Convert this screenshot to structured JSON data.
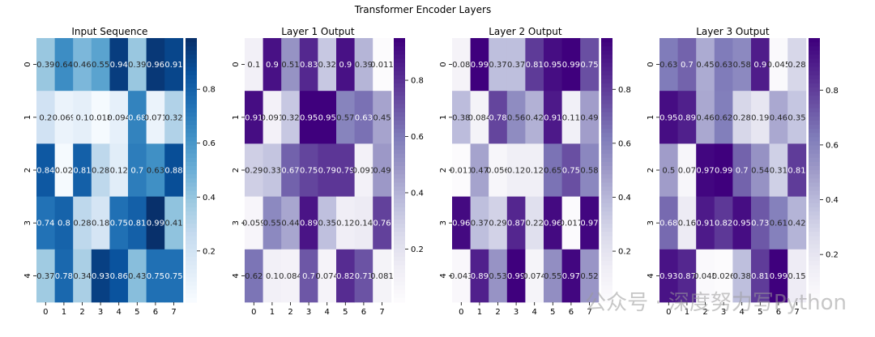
{
  "suptitle": "Transformer Encoder Layers",
  "watermark": "公众号 · 深度努力写Python",
  "colormaps": {
    "Blues": [
      "#f7fbff",
      "#deebf7",
      "#c6dbef",
      "#9ecae1",
      "#6baed6",
      "#4292c6",
      "#2171b5",
      "#08519c",
      "#08306b"
    ],
    "Purples": [
      "#fcfbfd",
      "#efedf5",
      "#dadaeb",
      "#bcbddc",
      "#9e9ac8",
      "#807dba",
      "#6a51a3",
      "#54278f",
      "#3f007d"
    ]
  },
  "chart_data": [
    {
      "type": "heatmap",
      "title": "Input Sequence",
      "cmap": "Blues",
      "xticks": [
        "0",
        "1",
        "2",
        "3",
        "4",
        "5",
        "6",
        "7"
      ],
      "yticks": [
        "0",
        "1",
        "2",
        "3",
        "4"
      ],
      "vmin": 0.01,
      "vmax": 0.99,
      "colorbar_ticks": [
        "0.2",
        "0.4",
        "0.6",
        "0.8"
      ],
      "values": [
        [
          0.39,
          0.64,
          0.46,
          0.55,
          0.94,
          0.39,
          0.96,
          0.91
        ],
        [
          0.2,
          0.069,
          0.1,
          0.018,
          0.094,
          0.68,
          0.071,
          0.32
        ],
        [
          0.84,
          0.02,
          0.81,
          0.28,
          0.12,
          0.7,
          0.63,
          0.88
        ],
        [
          0.74,
          0.8,
          0.28,
          0.18,
          0.75,
          0.81,
          0.99,
          0.41
        ],
        [
          0.37,
          0.78,
          0.34,
          0.93,
          0.86,
          0.43,
          0.75,
          0.75
        ]
      ],
      "labels": [
        [
          "0.39",
          "0.64",
          "0.46",
          "0.55",
          "0.94",
          "0.39",
          "0.96",
          "0.91"
        ],
        [
          "0.2",
          "0.069",
          "0.1",
          "0.018",
          "0.094",
          "0.68",
          "0.071",
          "0.32"
        ],
        [
          "0.84",
          "0.02",
          "0.81",
          "0.28",
          "0.12",
          "0.7",
          "0.63",
          "0.88"
        ],
        [
          "0.74",
          "0.8",
          "0.28",
          "0.18",
          "0.75",
          "0.81",
          "0.99",
          "0.41"
        ],
        [
          "0.37",
          "0.78",
          "0.34",
          "0.93",
          "0.86",
          "0.43",
          "0.75",
          "0.75"
        ]
      ]
    },
    {
      "type": "heatmap",
      "title": "Layer 1 Output",
      "cmap": "Purples",
      "xticks": [
        "0",
        "1",
        "2",
        "3",
        "4",
        "5",
        "6",
        "7"
      ],
      "yticks": [
        "0",
        "1",
        "2",
        "3",
        "4"
      ],
      "vmin": 0.011,
      "vmax": 0.95,
      "colorbar_ticks": [
        "0.2",
        "0.4",
        "0.6",
        "0.8"
      ],
      "values": [
        [
          0.1,
          0.9,
          0.51,
          0.83,
          0.32,
          0.9,
          0.39,
          0.011
        ],
        [
          0.91,
          0.091,
          0.32,
          0.95,
          0.95,
          0.57,
          0.63,
          0.45
        ],
        [
          0.29,
          0.33,
          0.67,
          0.75,
          0.79,
          0.79,
          0.091,
          0.49
        ],
        [
          0.059,
          0.55,
          0.44,
          0.89,
          0.35,
          0.12,
          0.14,
          0.76
        ],
        [
          0.62,
          0.1,
          0.084,
          0.7,
          0.074,
          0.82,
          0.71,
          0.081
        ]
      ],
      "labels": [
        [
          "0.1",
          "0.9",
          "0.51",
          "0.83",
          "0.32",
          "0.9",
          "0.39",
          "0.011"
        ],
        [
          "0.91",
          "0.091",
          "0.32",
          "0.95",
          "0.95",
          "0.57",
          "0.63",
          "0.45"
        ],
        [
          "0.29",
          "0.33",
          "0.67",
          "0.75",
          "0.79",
          "0.79",
          "0.091",
          "0.49"
        ],
        [
          "0.059",
          "0.55",
          "0.44",
          "0.89",
          "0.35",
          "0.12",
          "0.14",
          "0.76"
        ],
        [
          "0.62",
          "0.1",
          "0.084",
          "0.7",
          "0.074",
          "0.82",
          "0.71",
          "0.081"
        ]
      ]
    },
    {
      "type": "heatmap",
      "title": "Layer 2 Output",
      "cmap": "Purples",
      "xticks": [
        "0",
        "1",
        "2",
        "3",
        "4",
        "5",
        "6",
        "7"
      ],
      "yticks": [
        "0",
        "1",
        "2",
        "3",
        "4"
      ],
      "vmin": 0.011,
      "vmax": 0.99,
      "colorbar_ticks": [
        "0.2",
        "0.4",
        "0.6",
        "0.8"
      ],
      "values": [
        [
          0.08,
          0.99,
          0.37,
          0.37,
          0.81,
          0.95,
          0.99,
          0.75
        ],
        [
          0.38,
          0.084,
          0.78,
          0.56,
          0.42,
          0.91,
          0.11,
          0.49
        ],
        [
          0.011,
          0.47,
          0.056,
          0.12,
          0.12,
          0.65,
          0.75,
          0.58
        ],
        [
          0.96,
          0.37,
          0.29,
          0.87,
          0.22,
          0.96,
          0.017,
          0.97
        ],
        [
          0.043,
          0.89,
          0.53,
          0.99,
          0.074,
          0.55,
          0.97,
          0.52
        ]
      ],
      "labels": [
        [
          "0.08",
          "0.99",
          "0.37",
          "0.37",
          "0.81",
          "0.95",
          "0.99",
          "0.75"
        ],
        [
          "0.38",
          "0.084",
          "0.78",
          "0.56",
          "0.42",
          "0.91",
          "0.11",
          "0.49"
        ],
        [
          "0.011",
          "0.47",
          "0.056",
          "0.12",
          "0.12",
          "0.65",
          "0.75",
          "0.58"
        ],
        [
          "0.96",
          "0.37",
          "0.29",
          "0.87",
          "0.22",
          "0.96",
          "0.017",
          "0.97"
        ],
        [
          "0.043",
          "0.89",
          "0.53",
          "0.99",
          "0.074",
          "0.55",
          "0.97",
          "0.52"
        ]
      ]
    },
    {
      "type": "heatmap",
      "title": "Layer 3 Output",
      "cmap": "Purples",
      "xticks": [
        "0",
        "1",
        "2",
        "3",
        "4",
        "5",
        "6",
        "7"
      ],
      "yticks": [
        "0",
        "1",
        "2",
        "3",
        "4"
      ],
      "vmin": 0.026,
      "vmax": 0.99,
      "colorbar_ticks": [
        "0.2",
        "0.4",
        "0.6",
        "0.8"
      ],
      "values": [
        [
          0.63,
          0.7,
          0.45,
          0.63,
          0.58,
          0.9,
          0.045,
          0.28
        ],
        [
          0.95,
          0.89,
          0.46,
          0.62,
          0.28,
          0.19,
          0.46,
          0.35
        ],
        [
          0.5,
          0.07,
          0.97,
          0.99,
          0.7,
          0.54,
          0.31,
          0.81
        ],
        [
          0.68,
          0.16,
          0.91,
          0.82,
          0.95,
          0.73,
          0.61,
          0.42
        ],
        [
          0.93,
          0.87,
          0.045,
          0.026,
          0.38,
          0.81,
          0.99,
          0.15
        ]
      ],
      "labels": [
        [
          "0.63",
          "0.7",
          "0.45",
          "0.63",
          "0.58",
          "0.9",
          "0.045",
          "0.28"
        ],
        [
          "0.95",
          "0.89",
          "0.46",
          "0.62",
          "0.28",
          "0.19",
          "0.46",
          "0.35"
        ],
        [
          "0.5",
          "0.07",
          "0.97",
          "0.99",
          "0.7",
          "0.54",
          "0.31",
          "0.81"
        ],
        [
          "0.68",
          "0.16",
          "0.91",
          "0.82",
          "0.95",
          "0.73",
          "0.61",
          "0.42"
        ],
        [
          "0.93",
          "0.87",
          "0.045",
          "0.026",
          "0.38",
          "0.81",
          "0.99",
          "0.15"
        ]
      ]
    }
  ]
}
